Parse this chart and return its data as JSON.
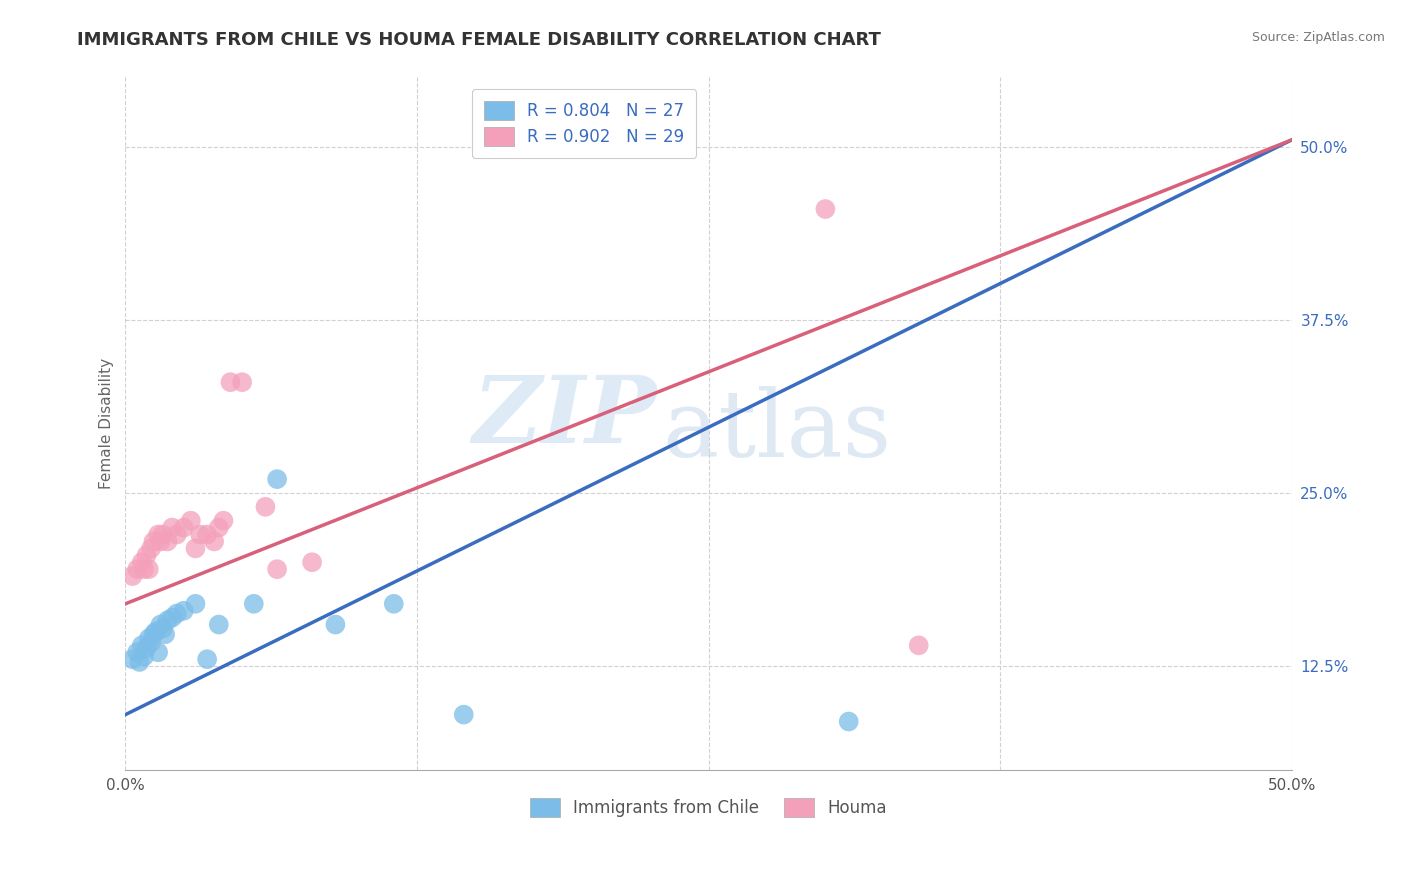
{
  "title": "IMMIGRANTS FROM CHILE VS HOUMA FEMALE DISABILITY CORRELATION CHART",
  "source_text": "Source: ZipAtlas.com",
  "ylabel": "Female Disability",
  "xlim": [
    0.0,
    0.5
  ],
  "ylim": [
    0.05,
    0.55
  ],
  "yticks": [
    0.125,
    0.25,
    0.375,
    0.5
  ],
  "ytick_labels": [
    "12.5%",
    "25.0%",
    "37.5%",
    "50.0%"
  ],
  "xticks": [
    0.0,
    0.125,
    0.25,
    0.375,
    0.5
  ],
  "xtick_labels": [
    "0.0%",
    "",
    "",
    "",
    "50.0%"
  ],
  "legend_R_blue": "R = 0.804",
  "legend_N_blue": "N = 27",
  "legend_R_pink": "R = 0.902",
  "legend_N_pink": "N = 29",
  "legend_label_blue": "Immigrants from Chile",
  "legend_label_pink": "Houma",
  "blue_color": "#7bbde8",
  "pink_color": "#f4a0bb",
  "blue_line_color": "#3a6cbf",
  "pink_line_color": "#d9607a",
  "blue_scatter_x": [
    0.003,
    0.005,
    0.006,
    0.007,
    0.008,
    0.009,
    0.01,
    0.011,
    0.012,
    0.013,
    0.014,
    0.015,
    0.016,
    0.017,
    0.018,
    0.02,
    0.022,
    0.025,
    0.03,
    0.035,
    0.04,
    0.055,
    0.065,
    0.09,
    0.115,
    0.145,
    0.31
  ],
  "blue_scatter_y": [
    0.13,
    0.135,
    0.128,
    0.14,
    0.132,
    0.138,
    0.145,
    0.142,
    0.148,
    0.15,
    0.135,
    0.155,
    0.152,
    0.148,
    0.158,
    0.16,
    0.163,
    0.165,
    0.17,
    0.13,
    0.155,
    0.17,
    0.26,
    0.155,
    0.17,
    0.09,
    0.085
  ],
  "pink_scatter_x": [
    0.003,
    0.005,
    0.007,
    0.008,
    0.009,
    0.01,
    0.011,
    0.012,
    0.014,
    0.015,
    0.016,
    0.018,
    0.02,
    0.022,
    0.025,
    0.028,
    0.03,
    0.032,
    0.035,
    0.038,
    0.04,
    0.042,
    0.045,
    0.05,
    0.06,
    0.065,
    0.08,
    0.3,
    0.34
  ],
  "pink_scatter_y": [
    0.19,
    0.195,
    0.2,
    0.195,
    0.205,
    0.195,
    0.21,
    0.215,
    0.22,
    0.215,
    0.22,
    0.215,
    0.225,
    0.22,
    0.225,
    0.23,
    0.21,
    0.22,
    0.22,
    0.215,
    0.225,
    0.23,
    0.33,
    0.33,
    0.24,
    0.195,
    0.2,
    0.455,
    0.14
  ],
  "blue_line_x": [
    0.0,
    0.5
  ],
  "blue_line_y": [
    0.09,
    0.505
  ],
  "pink_line_x": [
    0.0,
    0.5
  ],
  "pink_line_y": [
    0.17,
    0.505
  ],
  "watermark_zip": "ZIP",
  "watermark_atlas": "atlas",
  "background_color": "#ffffff",
  "title_fontsize": 13,
  "axis_label_fontsize": 11,
  "tick_fontsize": 11,
  "legend_fontsize": 12
}
